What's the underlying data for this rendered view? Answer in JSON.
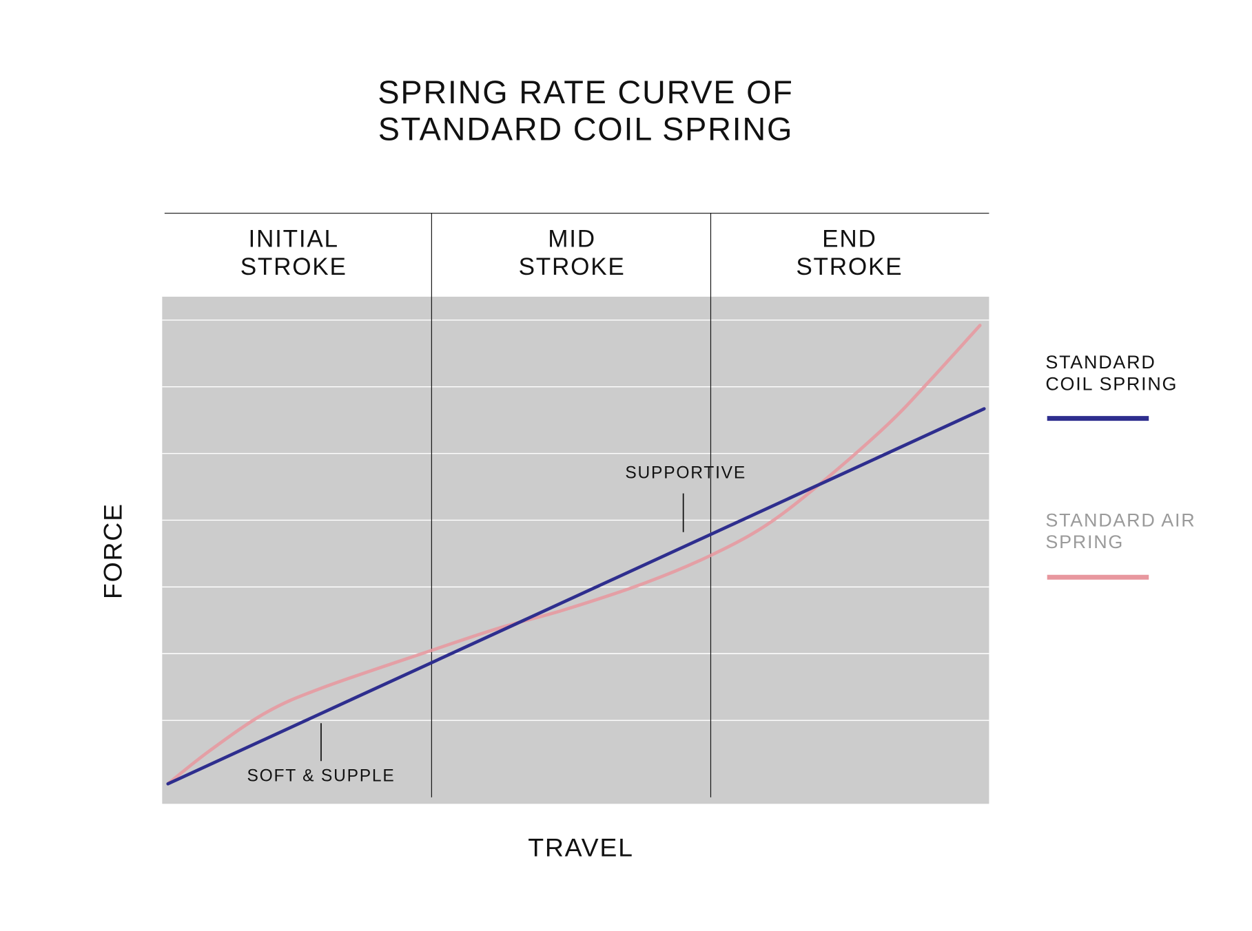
{
  "chart_data": {
    "type": "line",
    "title": "SPRING RATE CURVE OF STANDARD COIL SPRING",
    "x_label": "TRAVEL",
    "y_label": "FORCE",
    "regions": [
      "INITIAL STROKE",
      "MID STROKE",
      "END STROKE"
    ],
    "annotations": [
      "SUPPORTIVE",
      "SOFT & SUPPLE"
    ],
    "xlim": [
      0,
      100
    ],
    "ylim": [
      -0.25,
      7.35
    ],
    "yticks": [
      1,
      2,
      3,
      4,
      5,
      6,
      7
    ],
    "grid": true,
    "legend": "right",
    "series": [
      {
        "name": "STANDARD COIL SPRING",
        "color": "#2e2e8e",
        "x": [
          0.7,
          99.4
        ],
        "values": [
          0.05,
          5.67
        ]
      },
      {
        "name": "STANDARD AIR SPRING",
        "color": "#e8979e",
        "x": [
          0.7,
          5.8,
          12.6,
          19.4,
          32.6,
          40.9,
          48.7,
          58.4,
          66.3,
          73.1,
          79.9,
          87.7,
          92.6,
          98.9
        ],
        "values": [
          0.05,
          0.55,
          1.12,
          1.49,
          2.05,
          2.39,
          2.66,
          3.06,
          3.47,
          3.93,
          4.58,
          5.43,
          6.06,
          6.92
        ]
      }
    ]
  }
}
